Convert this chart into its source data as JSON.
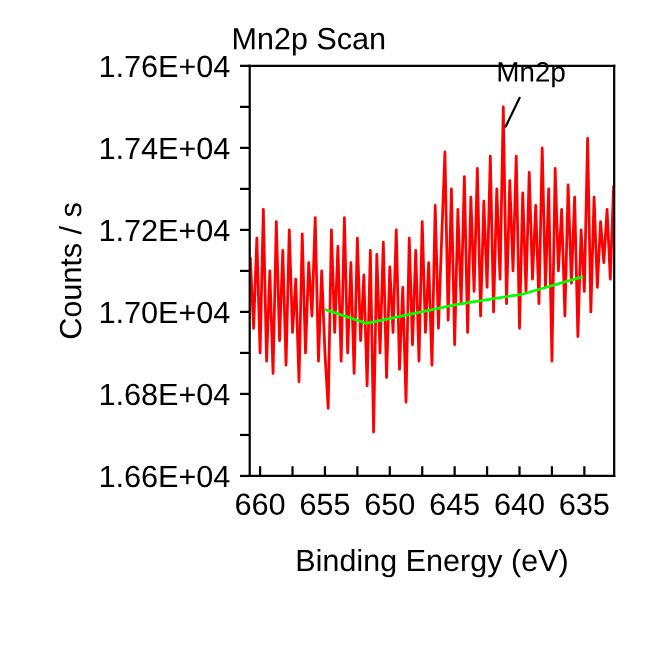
{
  "chart_data": {
    "type": "line",
    "title": "Mn2p Scan",
    "xlabel": "Binding Energy (eV)",
    "ylabel": "Counts / s",
    "xlim": [
      660.8,
      632.7
    ],
    "ylim": [
      16600,
      17600
    ],
    "xticks": [
      660,
      {
        "value": 657.5,
        "label": null
      },
      655,
      {
        "value": 652.5,
        "label": null
      },
      650,
      {
        "value": 647.5,
        "label": null
      },
      645,
      {
        "value": 642.5,
        "label": null
      },
      640,
      {
        "value": 637.5,
        "label": null
      },
      635
    ],
    "yticks": [
      {
        "value": 16600,
        "label": "1.66E+04"
      },
      {
        "value": 16700,
        "label": null
      },
      {
        "value": 16800,
        "label": "1.68E+04"
      },
      {
        "value": 16900,
        "label": null
      },
      {
        "value": 17000,
        "label": "1.70E+04"
      },
      {
        "value": 17100,
        "label": null
      },
      {
        "value": 17200,
        "label": "1.72E+04"
      },
      {
        "value": 17300,
        "label": null
      },
      {
        "value": 17400,
        "label": "1.74E+04"
      },
      {
        "value": 17500,
        "label": null
      },
      {
        "value": 17600,
        "label": "1.76E+04"
      }
    ],
    "grid": false,
    "marker": "none",
    "line_style": "solid",
    "annotations": [
      {
        "text": "Mn2p",
        "x": 641.25,
        "y": 17440
      }
    ],
    "series": [
      {
        "color": "#ff0000",
        "x": [
          660.75,
          660.5,
          660.25,
          660.0,
          659.75,
          659.5,
          659.25,
          659.0,
          658.75,
          658.5,
          658.25,
          658.0,
          657.75,
          657.5,
          657.25,
          657.0,
          656.75,
          656.5,
          656.25,
          656.0,
          655.75,
          655.5,
          655.25,
          655.0,
          654.75,
          654.5,
          654.25,
          654.0,
          653.75,
          653.5,
          653.25,
          653.0,
          652.75,
          652.5,
          652.25,
          652.0,
          651.75,
          651.5,
          651.25,
          651.0,
          650.75,
          650.5,
          650.25,
          650.0,
          649.75,
          649.5,
          649.25,
          649.0,
          648.75,
          648.5,
          648.25,
          648.0,
          647.75,
          647.5,
          647.25,
          647.0,
          646.75,
          646.5,
          646.25,
          646.0,
          645.75,
          645.5,
          645.25,
          645.0,
          644.75,
          644.5,
          644.25,
          644.0,
          643.75,
          643.5,
          643.25,
          643.0,
          642.75,
          642.5,
          642.25,
          642.0,
          641.75,
          641.5,
          641.25,
          641.0,
          640.75,
          640.5,
          640.25,
          640.0,
          639.75,
          639.5,
          639.25,
          639.0,
          638.75,
          638.5,
          638.25,
          638.0,
          637.75,
          637.5,
          637.25,
          637.0,
          636.75,
          636.5,
          636.25,
          636.0,
          635.75,
          635.5,
          635.25,
          635.0,
          634.75,
          634.5,
          634.25,
          634.0,
          633.75,
          633.5,
          633.25,
          633.0,
          632.75
        ],
        "values": [
          17130,
          16960,
          17180,
          16900,
          17250,
          16880,
          17100,
          16850,
          17220,
          16930,
          17150,
          16870,
          17200,
          16950,
          17080,
          16830,
          17190,
          16900,
          17120,
          16990,
          17230,
          16880,
          17100,
          16900,
          16765,
          17200,
          16950,
          17160,
          16880,
          17230,
          16900,
          17120,
          16850,
          17180,
          16930,
          17090,
          16820,
          17150,
          16707,
          17140,
          16900,
          17170,
          16840,
          17110,
          16950,
          17200,
          16860,
          17060,
          16780,
          17180,
          16920,
          17150,
          16880,
          17220,
          16950,
          17120,
          16870,
          17260,
          16960,
          17180,
          17390,
          16980,
          17300,
          16920,
          17250,
          17020,
          17330,
          16950,
          17280,
          17050,
          17350,
          16990,
          17270,
          17060,
          17380,
          17000,
          17300,
          17080,
          17500,
          17020,
          17320,
          17100,
          17380,
          16960,
          17290,
          17050,
          17340,
          17080,
          17260,
          17020,
          17400,
          17060,
          17300,
          16880,
          17350,
          17100,
          17250,
          16990,
          17310,
          17070,
          17280,
          16940,
          17200,
          17050,
          17423,
          17000,
          17280,
          17060,
          17220,
          17120,
          17250,
          17080,
          17305
        ]
      },
      {
        "color": "#00ff00",
        "x": [
          654.9,
          651.8,
          650.3,
          644.9,
          639.8,
          635.2
        ],
        "values": [
          17005,
          16972,
          16982,
          17018,
          17043,
          17085
        ]
      }
    ]
  }
}
